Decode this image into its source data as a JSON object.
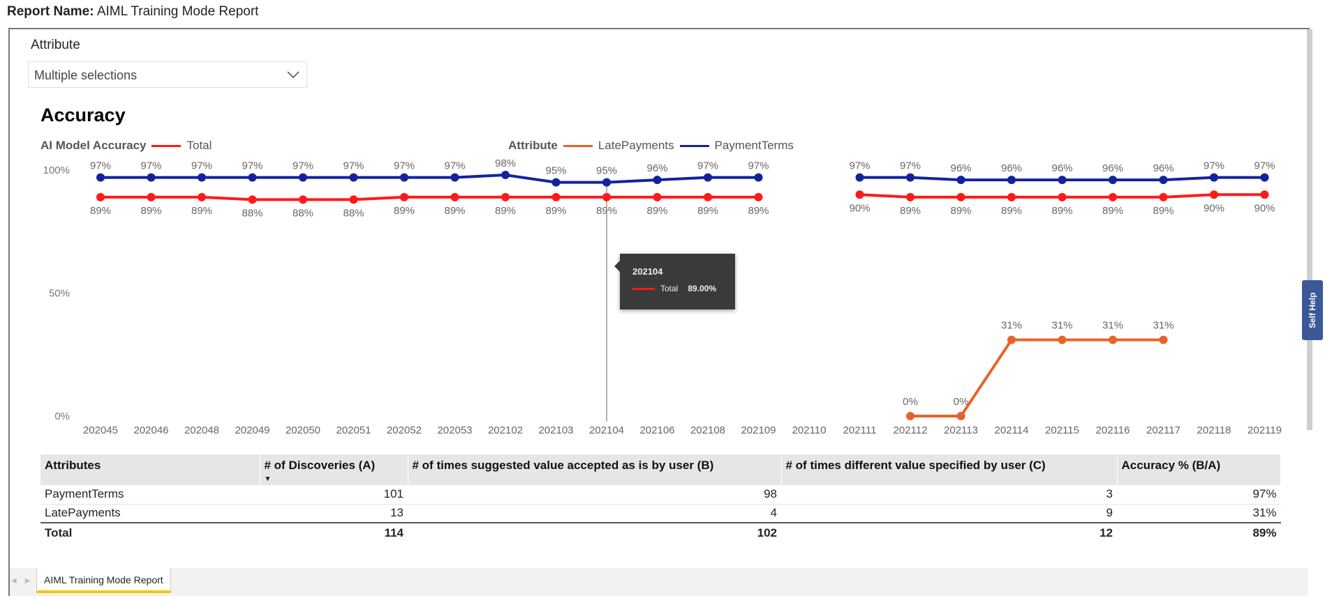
{
  "header": {
    "label": "Report Name:",
    "value": "AIML Training Mode Report"
  },
  "filter": {
    "label": "Attribute",
    "value": "Multiple selections"
  },
  "visual": {
    "title": "Accuracy",
    "legend1": {
      "title": "AI Model Accuracy",
      "items": [
        {
          "name": "Total",
          "color": "#ff1a1a"
        }
      ]
    },
    "legend2": {
      "title": "Attribute",
      "items": [
        {
          "name": "LatePayments",
          "color": "#e8632a"
        },
        {
          "name": "PaymentTerms",
          "color": "#12239e"
        }
      ]
    }
  },
  "tooltip": {
    "date": "202104",
    "series": "Total",
    "value": "89.00%"
  },
  "chart_data": {
    "type": "line",
    "title": "Accuracy",
    "xlabel": "",
    "ylabel": "",
    "ylim": [
      0,
      100
    ],
    "yticks": [
      "0%",
      "50%",
      "100%"
    ],
    "ytick_values": [
      0,
      50,
      100
    ],
    "categories": [
      "202045",
      "202046",
      "202048",
      "202049",
      "202050",
      "202051",
      "202052",
      "202053",
      "202102",
      "202103",
      "202104",
      "202106",
      "202108",
      "202109",
      "202110",
      "202111",
      "202112",
      "202113",
      "202114",
      "202115",
      "202116",
      "202117",
      "202118",
      "202119"
    ],
    "series": [
      {
        "name": "PaymentTerms",
        "color": "#12239e",
        "values": [
          97,
          97,
          97,
          97,
          97,
          97,
          97,
          97,
          98,
          95,
          95,
          96,
          97,
          97,
          null,
          97,
          97,
          96,
          96,
          96,
          96,
          96,
          97,
          97
        ]
      },
      {
        "name": "Total",
        "color": "#ff1a1a",
        "values": [
          89,
          89,
          89,
          88,
          88,
          88,
          89,
          89,
          89,
          89,
          89,
          89,
          89,
          89,
          null,
          90,
          89,
          89,
          89,
          89,
          89,
          89,
          90,
          90
        ]
      },
      {
        "name": "LatePayments",
        "color": "#e8632a",
        "values": [
          null,
          null,
          null,
          null,
          null,
          null,
          null,
          null,
          null,
          null,
          null,
          null,
          null,
          null,
          null,
          null,
          0,
          0,
          31,
          31,
          31,
          31,
          null,
          null
        ]
      }
    ],
    "hover_category": "202104",
    "grid": false,
    "legend": "top"
  },
  "table": {
    "headers": [
      "Attributes",
      "# of Discoveries (A)",
      "# of times suggested value accepted as is by user (B)",
      "# of times different value specified by user (C)",
      "Accuracy % (B/A)"
    ],
    "rows": [
      [
        "PaymentTerms",
        "101",
        "98",
        "3",
        "97%"
      ],
      [
        "LatePayments",
        "13",
        "4",
        "9",
        "31%"
      ]
    ],
    "total": [
      "Total",
      "114",
      "102",
      "12",
      "89%"
    ]
  },
  "tabs": {
    "active": "AIML Training Mode Report"
  },
  "self_help": "Self Help"
}
